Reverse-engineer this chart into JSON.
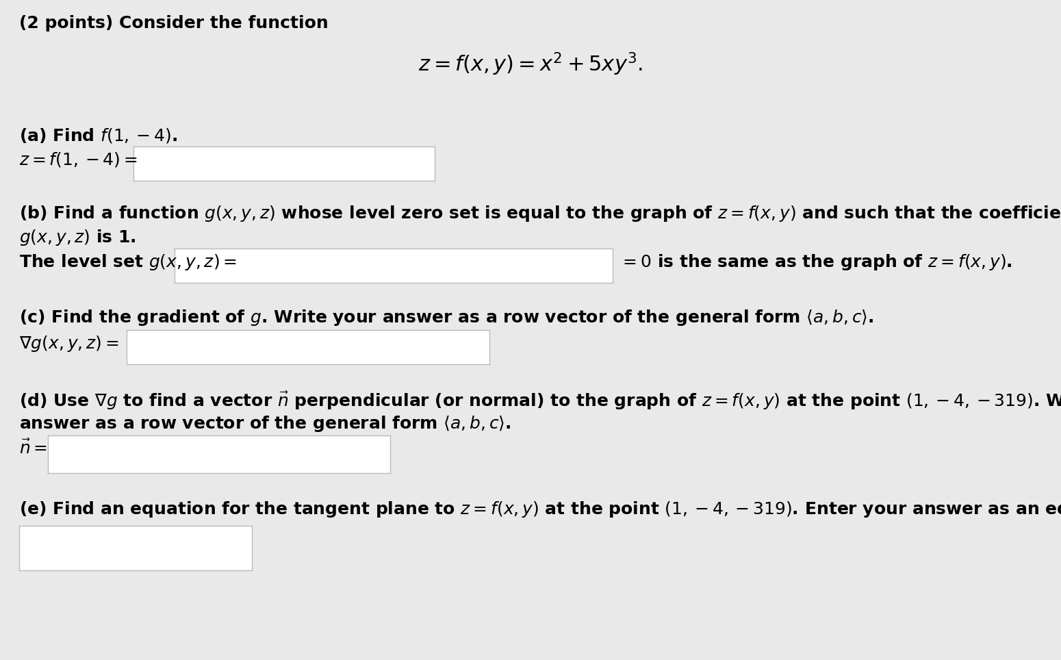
{
  "background_color": "#e9e9e9",
  "title_text": "(2 points) Consider the function",
  "main_equation": "$z = f(x, y) = x^2 + 5xy^3.$",
  "part_a_label": "(a) Find $f(1, -4)$.",
  "part_a_eq": "$z = f(1,-4) =$",
  "part_b_label1": "(b) Find a function $g(x, y, z)$ whose level zero set is equal to the graph of $z = f(x, y)$ and such that the coefficient of $z$ in",
  "part_b_label2": "$g(x, y, z)$ is 1.",
  "part_b_eq_left": "The level set $g(x, y, z) =$",
  "part_b_eq_right": "$= 0$ is the same as the graph of $z = f(x, y)$.",
  "part_c_label": "(c) Find the gradient of $g$. Write your answer as a row vector of the general form $\\langle a, b, c\\rangle$.",
  "part_c_eq": "$\\nabla g(x, y, z) =$",
  "part_d_label1": "(d) Use $\\nabla g$ to find a vector $\\vec{n}$ perpendicular (or normal) to the graph of $z = f(x, y)$ at the point $(1, -4, -319)$. Write your",
  "part_d_label2": "answer as a row vector of the general form $\\langle a, b, c\\rangle$.",
  "part_d_eq": "$\\vec{n} =$",
  "part_e_label": "(e) Find an equation for the tangent plane to $z = f(x, y)$ at the point $(1, -4, -319)$. Enter your answer as an equation.",
  "font_size": 18,
  "eq_font_size": 20,
  "box_facecolor": "white",
  "box_edgecolor": "#bbbbbb"
}
